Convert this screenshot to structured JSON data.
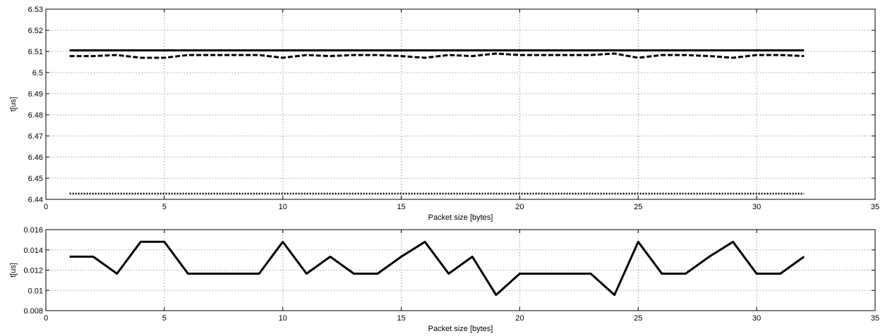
{
  "chart_data": [
    {
      "type": "line",
      "xlabel": "Packet size [bytes]",
      "ylabel": "t[us]",
      "xlim": [
        0,
        35
      ],
      "ylim": [
        6.44,
        6.53
      ],
      "xticks": [
        "0",
        "5",
        "10",
        "15",
        "20",
        "25",
        "30",
        "35"
      ],
      "yticks": [
        "6.44",
        "6.45",
        "6.46",
        "6.47",
        "6.48",
        "6.49",
        "6.5",
        "6.51",
        "6.52",
        "6.53"
      ],
      "grid": true,
      "x": [
        1,
        2,
        3,
        4,
        5,
        6,
        7,
        8,
        9,
        10,
        11,
        12,
        13,
        14,
        15,
        16,
        17,
        18,
        19,
        20,
        21,
        22,
        23,
        24,
        25,
        26,
        27,
        28,
        29,
        30,
        31,
        32
      ],
      "series": [
        {
          "style": "solid",
          "values": [
            6.5105,
            6.5105,
            6.5105,
            6.5105,
            6.5105,
            6.5105,
            6.5105,
            6.5105,
            6.5105,
            6.5105,
            6.5105,
            6.5105,
            6.5105,
            6.5105,
            6.5105,
            6.5105,
            6.5105,
            6.5105,
            6.5105,
            6.5105,
            6.5105,
            6.5105,
            6.5105,
            6.5105,
            6.5105,
            6.5105,
            6.5105,
            6.5105,
            6.5105,
            6.5105,
            6.5105,
            6.5105
          ]
        },
        {
          "style": "dashed",
          "values": [
            6.5078,
            6.5078,
            6.5083,
            6.507,
            6.507,
            6.5083,
            6.5083,
            6.5083,
            6.5083,
            6.507,
            6.5083,
            6.5078,
            6.5083,
            6.5083,
            6.5078,
            6.507,
            6.5083,
            6.5078,
            6.509,
            6.5083,
            6.5083,
            6.5083,
            6.5083,
            6.509,
            6.507,
            6.5083,
            6.5083,
            6.5078,
            6.507,
            6.5083,
            6.5083,
            6.5078
          ]
        },
        {
          "style": "dotted",
          "values": [
            6.4427,
            6.4427,
            6.4427,
            6.4427,
            6.4427,
            6.4427,
            6.4427,
            6.4427,
            6.4427,
            6.4427,
            6.4427,
            6.4427,
            6.4427,
            6.4427,
            6.4427,
            6.4427,
            6.4427,
            6.4427,
            6.4427,
            6.4427,
            6.4427,
            6.4427,
            6.4427,
            6.4427,
            6.4427,
            6.4427,
            6.4427,
            6.4427,
            6.4427,
            6.4427,
            6.4427,
            6.4427
          ]
        }
      ]
    },
    {
      "type": "line",
      "xlabel": "Packet size [bytes]",
      "ylabel": "t[us]",
      "xlim": [
        0,
        35
      ],
      "ylim": [
        0.008,
        0.016
      ],
      "xticks": [
        "0",
        "5",
        "10",
        "15",
        "20",
        "25",
        "30",
        "35"
      ],
      "yticks": [
        "0.008",
        "0.01",
        "0.012",
        "0.014",
        "0.016"
      ],
      "grid": true,
      "x": [
        1,
        2,
        3,
        4,
        5,
        6,
        7,
        8,
        9,
        10,
        11,
        12,
        13,
        14,
        15,
        16,
        17,
        18,
        19,
        20,
        21,
        22,
        23,
        24,
        25,
        26,
        27,
        28,
        29,
        30,
        31,
        32
      ],
      "series": [
        {
          "style": "solid",
          "values": [
            0.01333,
            0.01333,
            0.01165,
            0.0148,
            0.0148,
            0.01165,
            0.01165,
            0.01165,
            0.01165,
            0.0148,
            0.01165,
            0.01333,
            0.01165,
            0.01165,
            0.01333,
            0.0148,
            0.01165,
            0.01333,
            0.00955,
            0.01165,
            0.01165,
            0.01165,
            0.01165,
            0.00955,
            0.0148,
            0.01165,
            0.01165,
            0.01333,
            0.0148,
            0.01165,
            0.01165,
            0.01333
          ]
        }
      ]
    }
  ]
}
